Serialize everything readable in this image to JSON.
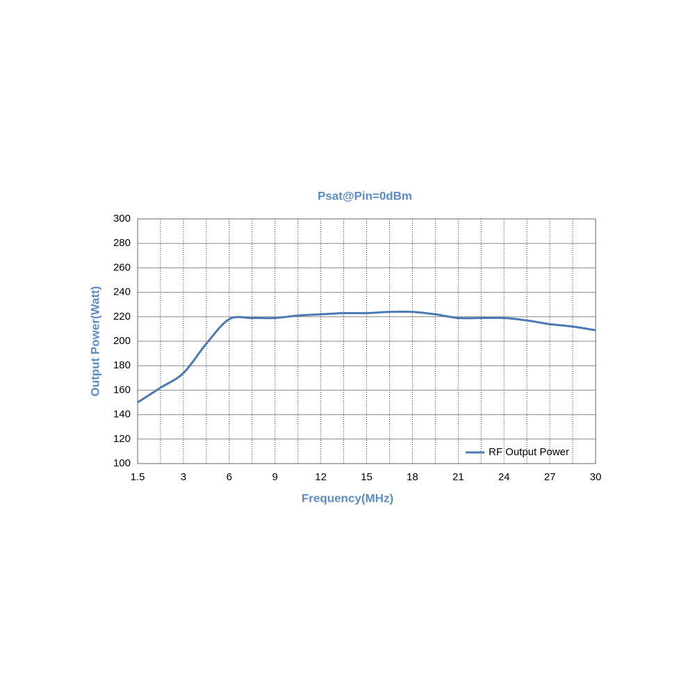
{
  "chart_data": {
    "type": "line",
    "title": "Psat@Pin=0dBm",
    "x_label": "Frequency(MHz)",
    "y_label": "Output Power(Watt)",
    "categories": [
      "1.5",
      null,
      "3",
      null,
      "6",
      null,
      "9",
      null,
      "12",
      null,
      "15",
      null,
      "18",
      null,
      "21",
      null,
      "24",
      null,
      "27",
      null,
      "30"
    ],
    "series": [
      {
        "name": "RF Output Power",
        "color": "#4a7ab5",
        "values": [
          150,
          162,
          174,
          198,
          218,
          219,
          219,
          221,
          222,
          223,
          223,
          224,
          224,
          222,
          219,
          219,
          219,
          217,
          214,
          212,
          209
        ]
      }
    ],
    "ylim": [
      100,
      300
    ],
    "yticks": [
      100,
      120,
      140,
      160,
      180,
      200,
      220,
      240,
      260,
      280,
      300
    ],
    "grid": true,
    "legend": "lower-right"
  }
}
